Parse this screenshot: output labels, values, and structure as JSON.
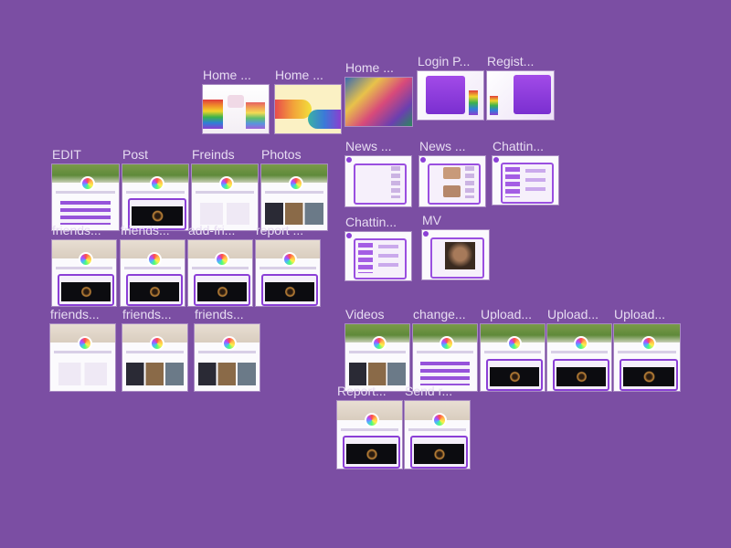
{
  "canvas": {
    "background": "#7b4ea3",
    "label_color": "#e7dcf2"
  },
  "frames": {
    "home1": "Home ...",
    "home2": "Home ...",
    "home3": "Home ...",
    "login": "Login P...",
    "regist": "Regist...",
    "edit": "EDIT",
    "post": "Post",
    "freinds": "Freinds",
    "photos": "Photos",
    "news1": "News ...",
    "news2": "News ...",
    "chat1": "Chattin...",
    "chat2": "Chattin...",
    "mv": "MV",
    "friends_a": "friends...",
    "friends_b": "friends...",
    "friends_c": "friends...",
    "friends_row1": "friends...",
    "add": "add-fri...",
    "report": "report ...",
    "videos": "Videos",
    "change": "change...",
    "upload1": "Upload...",
    "upload2": "Upload...",
    "upload3": "Upload...",
    "report2": "Report...",
    "send": "Send r..."
  }
}
